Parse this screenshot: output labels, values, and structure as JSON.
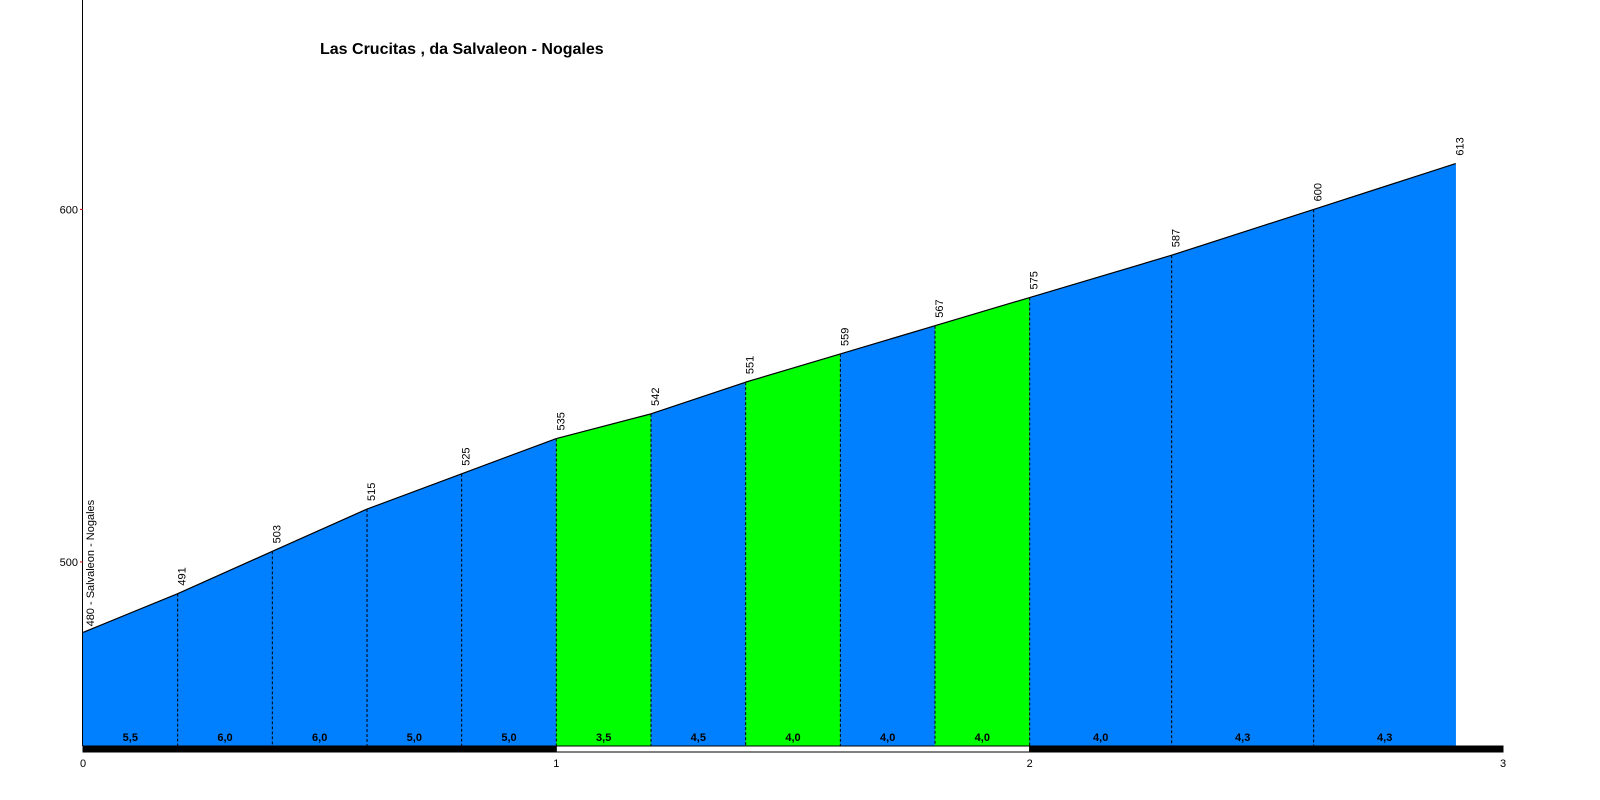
{
  "chart_data": {
    "type": "area",
    "title": "Las Crucitas , da Salvaleon - Nogales",
    "xlabel": "",
    "ylabel": "",
    "x_ticks": [
      "0",
      "1",
      "2",
      "3"
    ],
    "y_ticks": [
      "500",
      "600"
    ],
    "xlim": [
      0,
      3
    ],
    "ylim": [
      447.5,
      659.4
    ],
    "grid": false,
    "start_label": "480 - Salvaleon - Nogales",
    "points": [
      {
        "km": 0.0,
        "elev": 480
      },
      {
        "km": 0.2,
        "elev": 491
      },
      {
        "km": 0.4,
        "elev": 503
      },
      {
        "km": 0.6,
        "elev": 515
      },
      {
        "km": 0.8,
        "elev": 525
      },
      {
        "km": 1.0,
        "elev": 535
      },
      {
        "km": 1.2,
        "elev": 542
      },
      {
        "km": 1.4,
        "elev": 551
      },
      {
        "km": 1.6,
        "elev": 559
      },
      {
        "km": 1.8,
        "elev": 567
      },
      {
        "km": 2.0,
        "elev": 575
      },
      {
        "km": 2.3,
        "elev": 587
      },
      {
        "km": 2.6,
        "elev": 600
      },
      {
        "km": 2.9,
        "elev": 613
      }
    ],
    "elevation_labels": [
      "491",
      "503",
      "515",
      "525",
      "535",
      "542",
      "551",
      "559",
      "567",
      "575",
      "587",
      "600",
      "613"
    ],
    "segments": [
      {
        "gradient": "5,5",
        "color": "#0080ff"
      },
      {
        "gradient": "6,0",
        "color": "#0080ff"
      },
      {
        "gradient": "6,0",
        "color": "#0080ff"
      },
      {
        "gradient": "5,0",
        "color": "#0080ff"
      },
      {
        "gradient": "5,0",
        "color": "#0080ff"
      },
      {
        "gradient": "3,5",
        "color": "#00ff00"
      },
      {
        "gradient": "4,5",
        "color": "#0080ff"
      },
      {
        "gradient": "4,0",
        "color": "#00ff00"
      },
      {
        "gradient": "4,0",
        "color": "#0080ff"
      },
      {
        "gradient": "4,0",
        "color": "#00ff00"
      },
      {
        "gradient": "4,0",
        "color": "#0080ff"
      },
      {
        "gradient": "4,3",
        "color": "#0080ff"
      },
      {
        "gradient": "4,3",
        "color": "#0080ff"
      }
    ],
    "km_bar": [
      {
        "from": 0,
        "to": 1,
        "color": "#000000"
      },
      {
        "from": 1,
        "to": 2,
        "color": "#ffffff"
      },
      {
        "from": 2,
        "to": 3,
        "color": "#000000"
      }
    ]
  }
}
